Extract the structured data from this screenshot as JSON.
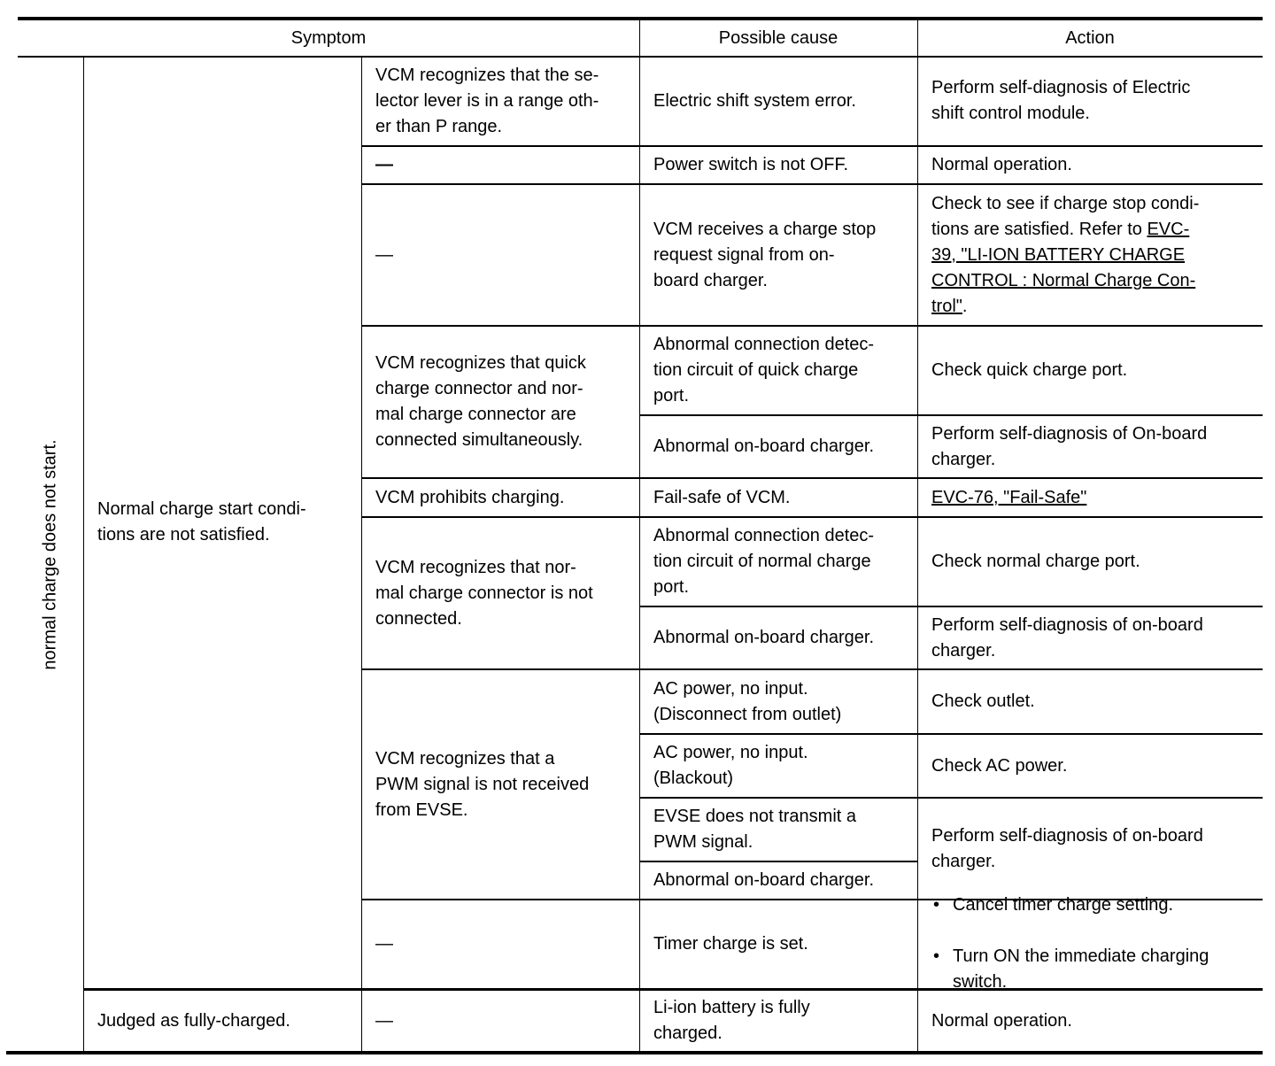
{
  "header": {
    "symptom": "Symptom",
    "possible_cause": "Possible cause",
    "action": "Action"
  },
  "symptom_main": "normal charge does not start.",
  "symptom_sub": [
    "Normal charge start condi-\ntions are not satisfied.",
    "Judged as fully-charged."
  ],
  "conditions": [
    "VCM recognizes that the se-\nlector lever is in a range oth-\ner than P range.",
    "—",
    "—",
    "VCM recognizes that quick\ncharge connector and nor-\nmal charge connector are\nconnected simultaneously.",
    "VCM prohibits charging.",
    "VCM recognizes that nor-\nmal charge connector is not\nconnected.",
    "VCM recognizes that a\nPWM signal is not received\nfrom EVSE.",
    "—",
    "—"
  ],
  "causes": [
    "Electric shift system error.",
    "Power switch is not OFF.",
    "VCM receives a charge stop\nrequest signal from on-\nboard charger.",
    "Abnormal connection detec-\ntion circuit of quick charge\nport.",
    "Abnormal on-board charger.",
    "Fail-safe of VCM.",
    "Abnormal connection detec-\ntion circuit of normal charge\nport.",
    "Abnormal on-board charger.",
    "AC power, no input.\n(Disconnect from outlet)",
    "AC power, no input.\n(Blackout)",
    "EVSE does not transmit a\nPWM signal.",
    "Abnormal on-board charger.",
    "Timer charge is set.",
    "Li-ion battery is fully\ncharged."
  ],
  "actions": [
    "Perform self-diagnosis of Electric\nshift control module.",
    "Normal operation.",
    {
      "text": "Check to see if charge stop condi-\ntions are satisfied. Refer to ",
      "link": "EVC-\n39, \"LI-ION BATTERY CHARGE \nCONTROL : Normal Charge Con-\ntrol\"",
      "after": "."
    },
    "Check quick charge port.",
    "Perform self-diagnosis of On-board\ncharger.",
    {
      "link": "EVC-76, \"Fail-Safe\""
    },
    "Check normal charge port.",
    "Perform self-diagnosis of on-board\ncharger.",
    "Check outlet.",
    "Check AC power.",
    "Perform self-diagnosis of on-board\ncharger.",
    {
      "bullets": [
        "Cancel timer charge setting.",
        "Turn ON the immediate charging\nswitch."
      ]
    },
    "Normal operation."
  ]
}
